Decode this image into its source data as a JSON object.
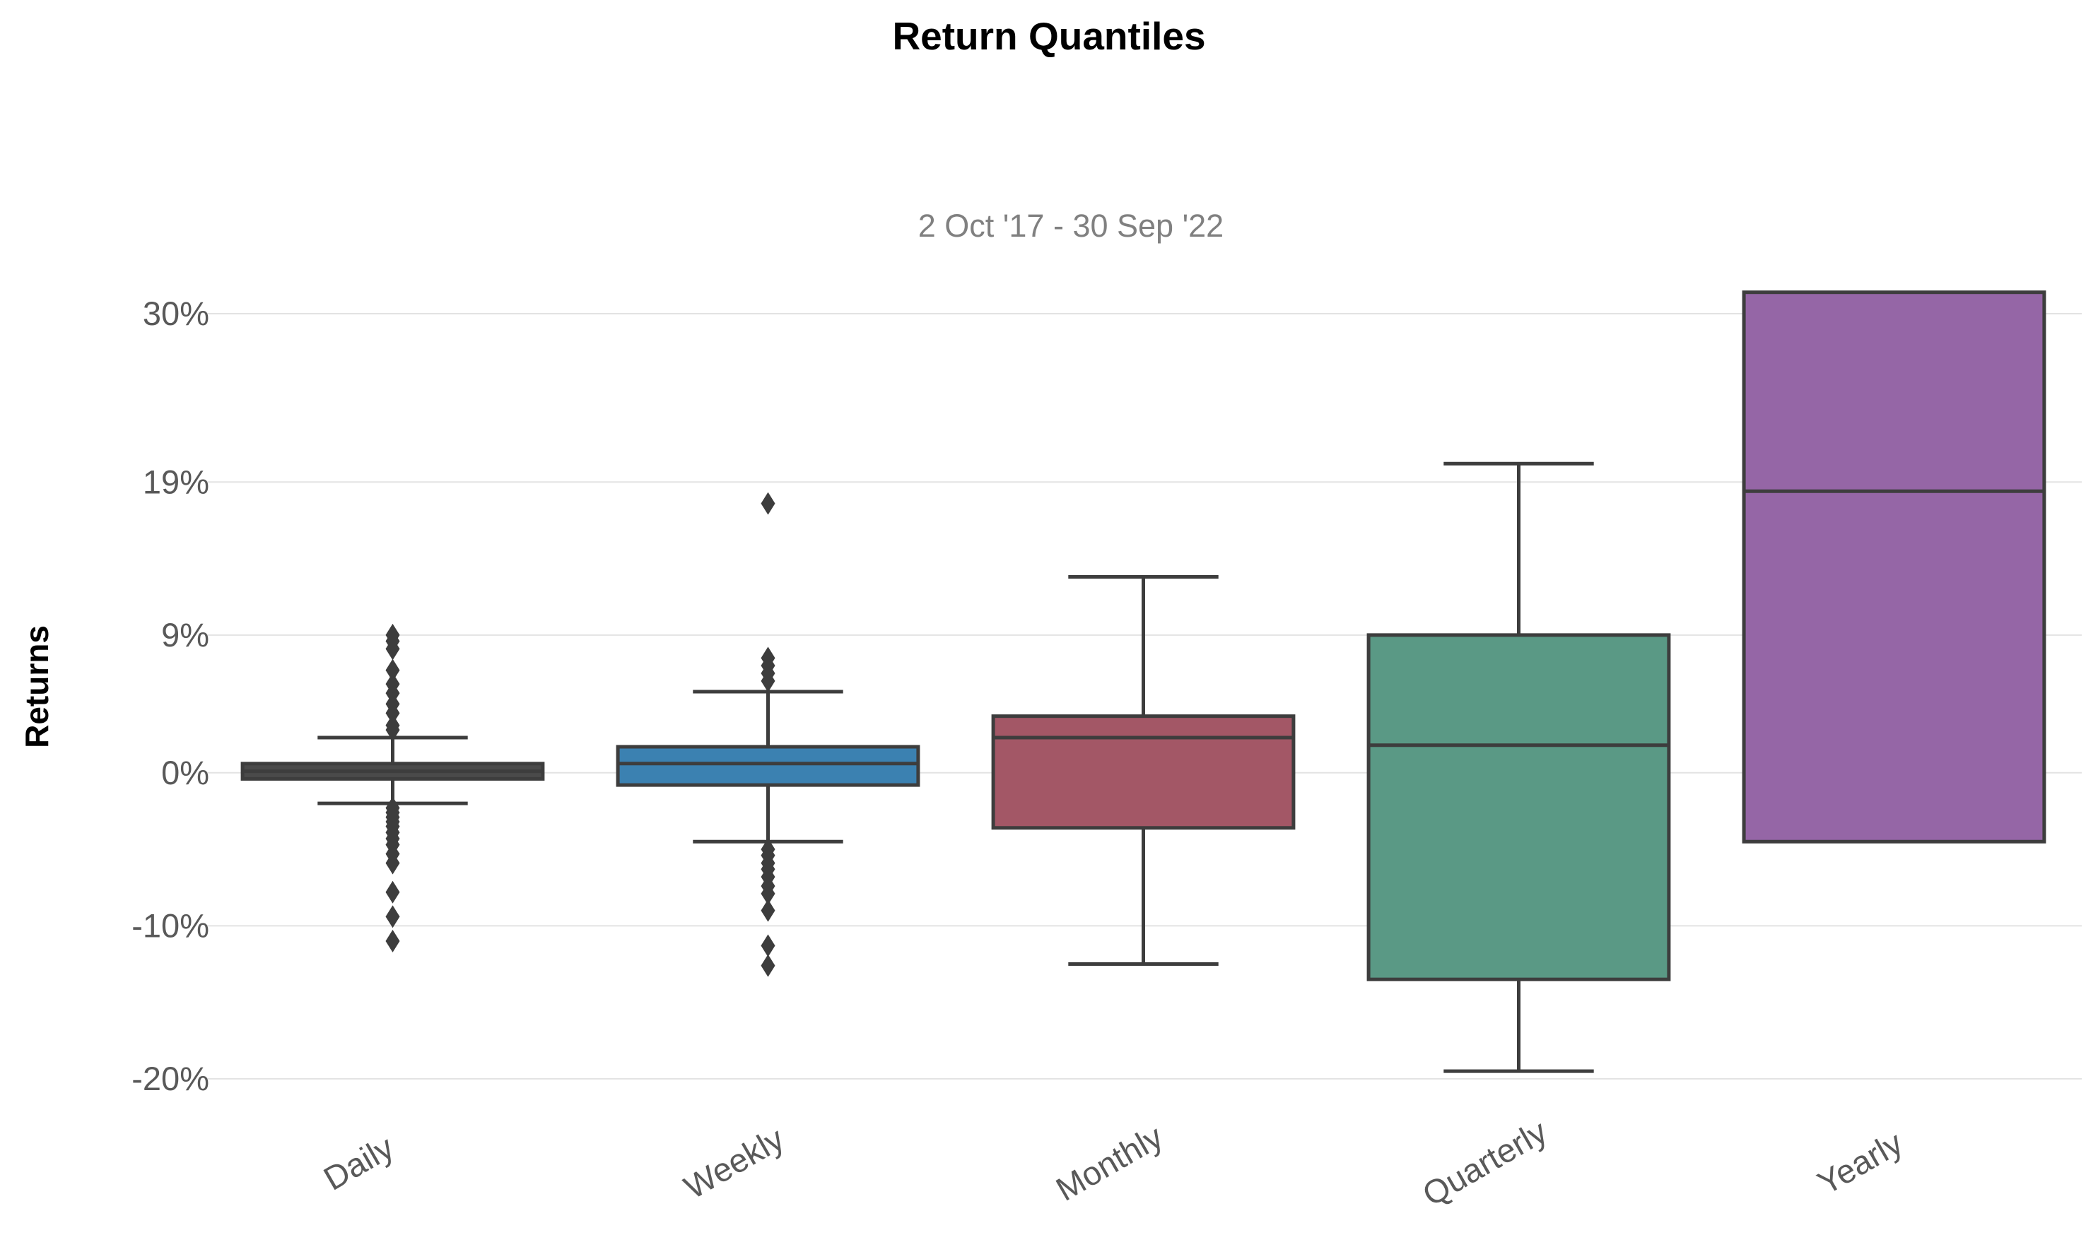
{
  "chart_data": {
    "type": "box",
    "title": "Return Quantiles",
    "subtitle": "2 Oct '17 - 30 Sep '22",
    "xlabel": "",
    "ylabel": "Returns",
    "grid": true,
    "y_ticks": [
      -20,
      -10,
      0,
      9,
      19,
      30
    ],
    "y_tick_labels": [
      "-20%",
      "-10%",
      "0%",
      "9%",
      "19%",
      "30%"
    ],
    "ylim": [
      -22.5,
      34
    ],
    "categories": [
      "Daily",
      "Weekly",
      "Monthly",
      "Quarterly",
      "Yearly"
    ],
    "boxes": [
      {
        "category": "Daily",
        "color": "#4a4a4a",
        "q1": -0.4,
        "median": 0.1,
        "q3": 0.6,
        "whisker_low": -2.0,
        "whisker_high": 2.3,
        "outliers": [
          8.1,
          9.0,
          8.6,
          6.7,
          5.8,
          5.2,
          4.5,
          3.9,
          3.1,
          2.8,
          -2.3,
          -2.6,
          -2.9,
          -3.2,
          -3.5,
          -3.9,
          -4.3,
          -4.7,
          -5.3,
          -5.9,
          -7.8,
          -9.4,
          -11.0
        ]
      },
      {
        "category": "Weekly",
        "color": "#3b81b1",
        "q1": -0.8,
        "median": 0.6,
        "q3": 1.7,
        "whisker_low": -4.5,
        "whisker_high": 5.3,
        "outliers": [
          17.6,
          7.5,
          7.0,
          6.5,
          6.0,
          -5.0,
          -5.4,
          -5.9,
          -6.3,
          -6.8,
          -7.4,
          -7.9,
          -9.0,
          -11.3,
          -12.6
        ]
      },
      {
        "category": "Monthly",
        "color": "#a35766",
        "q1": -3.6,
        "median": 2.3,
        "q3": 3.7,
        "whisker_low": -12.5,
        "whisker_high": 12.8
      },
      {
        "category": "Quarterly",
        "color": "#5a9985",
        "q1": -13.5,
        "median": 1.8,
        "q3": 9.0,
        "whisker_low": -19.5,
        "whisker_high": 20.2
      },
      {
        "category": "Yearly",
        "color": "#9566a6",
        "q1": -4.5,
        "median": 18.4,
        "q3": 31.4,
        "whisker_low": -4.5,
        "whisker_high": 31.4
      }
    ]
  }
}
